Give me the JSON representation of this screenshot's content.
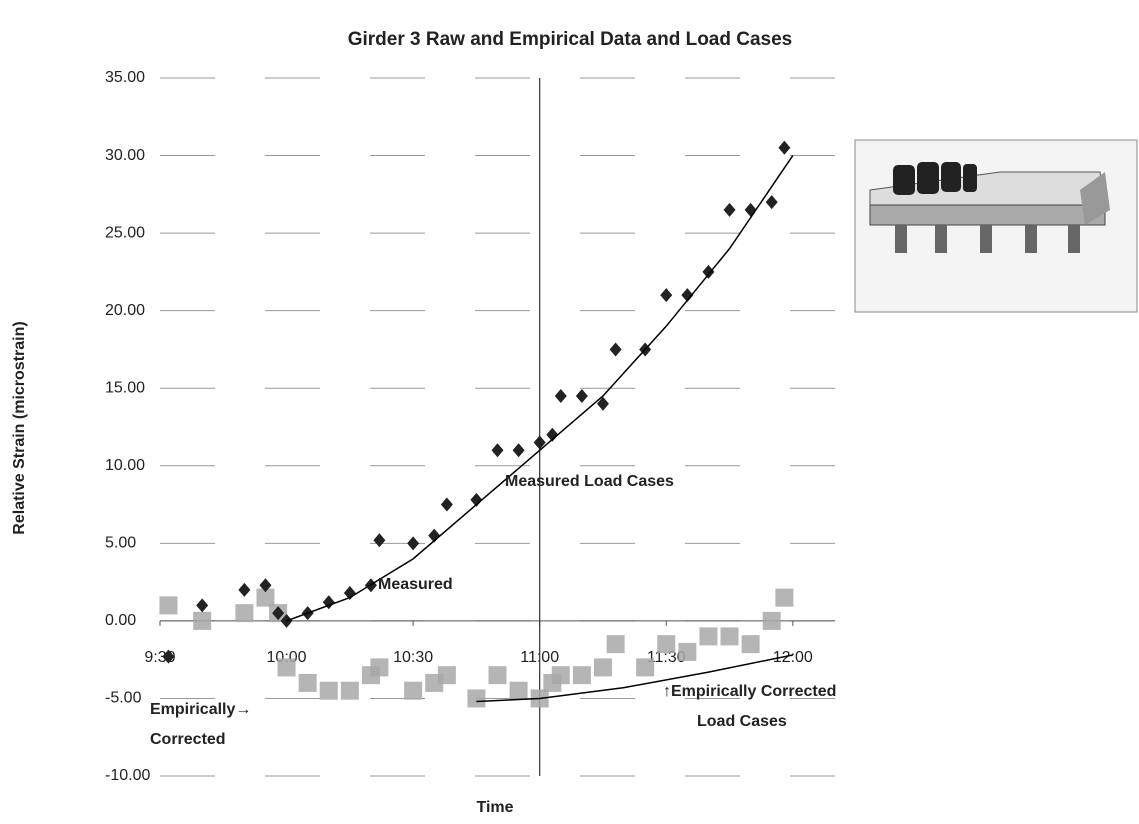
{
  "chart_data": {
    "type": "scatter",
    "title": "Girder 3 Raw and Empirical Data and Load Cases",
    "x_label": "Time",
    "y_label": "Relative Strain (microstrain)",
    "xlim": [
      570,
      730
    ],
    "ylim": [
      -10,
      35
    ],
    "xticks": [
      {
        "value": 570,
        "label": "9:30"
      },
      {
        "value": 600,
        "label": "10:00"
      },
      {
        "value": 630,
        "label": "10:30"
      },
      {
        "value": 660,
        "label": "11:00"
      },
      {
        "value": 690,
        "label": "11:30"
      },
      {
        "value": 720,
        "label": "12:00"
      }
    ],
    "yticks": [
      {
        "value": -10,
        "label": "-10.00"
      },
      {
        "value": -5,
        "label": "-5.00"
      },
      {
        "value": 0,
        "label": "0.00"
      },
      {
        "value": 5,
        "label": "5.00"
      },
      {
        "value": 10,
        "label": "10.00"
      },
      {
        "value": 15,
        "label": "15.00"
      },
      {
        "value": 20,
        "label": "20.00"
      },
      {
        "value": 25,
        "label": "25.00"
      },
      {
        "value": 30,
        "label": "30.00"
      },
      {
        "value": 35,
        "label": "35.00"
      }
    ],
    "grid": true,
    "vline_x": 660,
    "series": [
      {
        "color": "#a8a8a8",
        "marker": "square",
        "x": [
          572,
          580,
          590,
          595,
          598,
          600,
          605,
          610,
          615,
          620,
          622,
          630,
          635,
          638,
          645,
          650,
          655,
          660,
          663,
          665,
          670,
          675,
          678,
          685,
          690,
          695,
          700,
          705,
          710,
          715,
          718
        ],
        "values": [
          1,
          0,
          0.5,
          1.5,
          0.5,
          -3,
          -4,
          -4.5,
          -4.5,
          -3.5,
          -3,
          -4.5,
          -4,
          -3.5,
          -5,
          -3.5,
          -4.5,
          -5,
          -4,
          -3.5,
          -3.5,
          -3,
          -1.5,
          -3,
          -1.5,
          -2,
          -1,
          -1,
          -1.5,
          0,
          1.5
        ]
      },
      {
        "color": "#222222",
        "marker": "diamond",
        "x": [
          572,
          580,
          590,
          595,
          598,
          600,
          605,
          610,
          615,
          620,
          622,
          630,
          635,
          638,
          645,
          650,
          655,
          660,
          663,
          665,
          670,
          675,
          678,
          685,
          690,
          695,
          700,
          705,
          710,
          715,
          718
        ],
        "values": [
          -2.3,
          1,
          2,
          2.3,
          0.5,
          0,
          0.5,
          1.2,
          1.8,
          2.3,
          5.2,
          5,
          5.5,
          7.5,
          7.8,
          11,
          11,
          11.5,
          12,
          14.5,
          14.5,
          14,
          17.5,
          17.5,
          21,
          21,
          22.5,
          26.5,
          26.5,
          27,
          30.5
        ]
      },
      {
        "color": "#000000",
        "marker": "none",
        "x": [
          600,
          615,
          630,
          645,
          660,
          675,
          690,
          705,
          720
        ],
        "values": [
          0,
          1.5,
          4,
          7.5,
          11,
          14.5,
          19,
          24,
          30
        ]
      },
      {
        "color": "#000000",
        "marker": "none",
        "x": [
          645,
          660,
          680,
          700,
          720
        ],
        "values": [
          -5.2,
          -5,
          -4.3,
          -3.3,
          -2.2
        ]
      }
    ],
    "annotations": [
      "←Measured",
      "Measured Load Cases",
      "Empirically→",
      "Corrected",
      "↑Empirically Corrected",
      "Load Cases"
    ]
  }
}
